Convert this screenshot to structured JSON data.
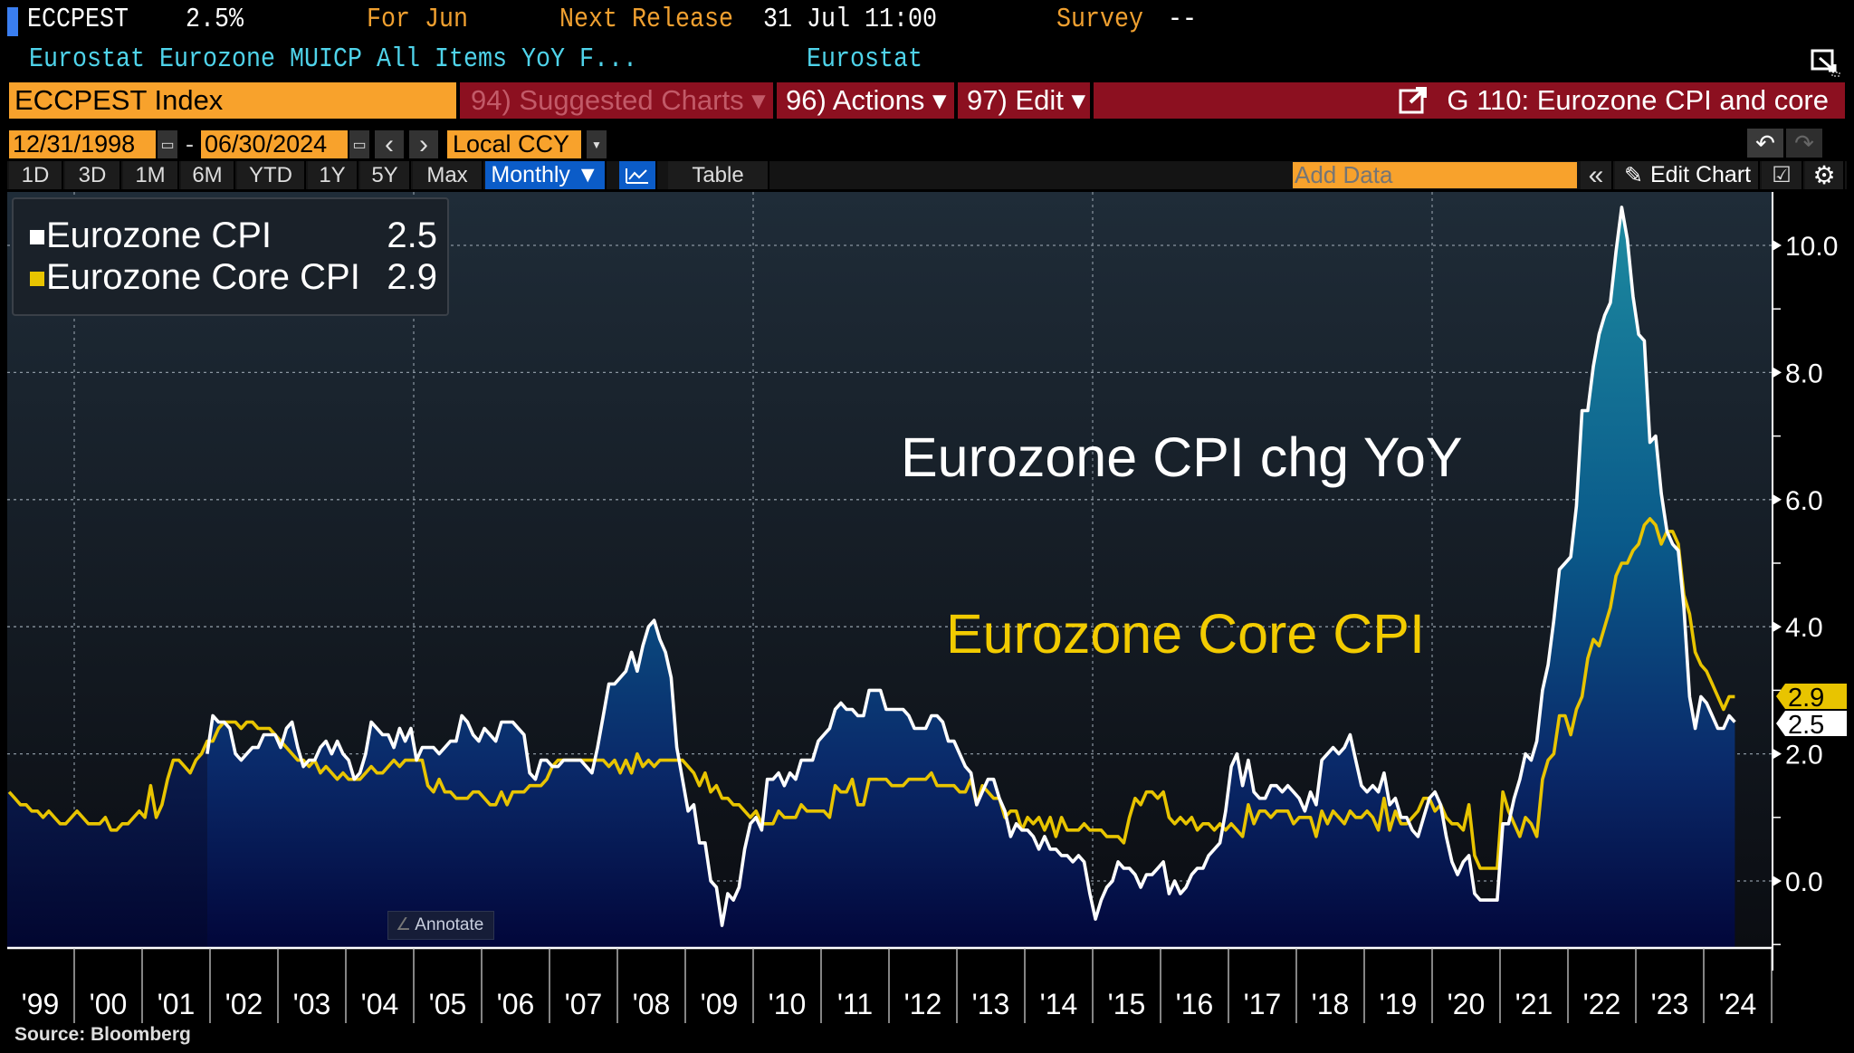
{
  "header": {
    "ticker": "ECCPEST",
    "value": "2.5%",
    "for_label": "For Jun",
    "next_release_label": "Next Release",
    "next_release_value": "31 Jul 11:00",
    "survey_label": "Survey",
    "survey_value": "--",
    "description": "Eurostat Eurozone MUICP All Items YoY F...",
    "source_name": "Eurostat"
  },
  "command_bar": {
    "security": "ECCPEST Index",
    "suggested_charts": "94) Suggested Charts ▾",
    "actions": "96) Actions ▾",
    "edit": "97) Edit ▾",
    "chart_title": "G 110: Eurozone CPI and core"
  },
  "range_bar": {
    "start_date": "12/31/1998",
    "separator": "-",
    "end_date": "06/30/2024",
    "prev": "‹",
    "next": "›",
    "currency": "Local CCY"
  },
  "toolbar": {
    "periods": [
      "1D",
      "3D",
      "1M",
      "6M",
      "YTD",
      "1Y",
      "5Y",
      "Max"
    ],
    "frequency": "Monthly ▼",
    "table": "Table",
    "add_data_placeholder": "Add Data",
    "collapse": "«",
    "edit_chart": "Edit Chart"
  },
  "legend": [
    {
      "name": "Eurozone CPI",
      "value": "2.5",
      "color": "#ffffff"
    },
    {
      "name": "Eurozone Core CPI",
      "value": "2.9",
      "color": "#e8c400"
    }
  ],
  "annotate_label": "Annotate",
  "source": "Source: Bloomberg",
  "chart_data": {
    "type": "line",
    "frequency": "monthly",
    "annotations": [
      "Eurozone CPI chg YoY",
      "Eurozone Core CPI"
    ],
    "y_axis": {
      "side": "right",
      "range": [
        -1.0,
        11.0
      ],
      "ticks": [
        "10.0",
        "8.0",
        "6.0",
        "4.0",
        "2.0",
        "0.0"
      ],
      "tick_values": [
        10,
        8,
        6,
        4,
        2,
        0
      ]
    },
    "x_axis": {
      "range": [
        "1999-01",
        "2024-06"
      ],
      "tick_labels": [
        "'99",
        "'00",
        "'01",
        "'02",
        "'03",
        "'04",
        "'05",
        "'06",
        "'07",
        "'08",
        "'09",
        "'10",
        "'11",
        "'12",
        "'13",
        "'14",
        "'15",
        "'16",
        "'17",
        "'18",
        "'19",
        "'20",
        "'21",
        "'22",
        "'23",
        "'24"
      ]
    },
    "grid": true,
    "legend_position": "top-left",
    "last_value_tags": [
      {
        "series": "Eurozone Core CPI",
        "value": "2.9"
      },
      {
        "series": "Eurozone CPI",
        "value": "2.5"
      }
    ],
    "series": [
      {
        "name": "Eurozone CPI",
        "color": "#ffffff",
        "start": "2001-12",
        "values": [
          2.0,
          2.6,
          2.5,
          2.5,
          2.4,
          2.0,
          1.9,
          2.0,
          2.1,
          2.1,
          2.3,
          2.3,
          2.3,
          2.1,
          2.4,
          2.5,
          2.1,
          1.8,
          1.9,
          1.9,
          2.1,
          2.2,
          2.0,
          2.2,
          2.0,
          1.9,
          1.6,
          1.7,
          2.0,
          2.5,
          2.4,
          2.3,
          2.3,
          2.1,
          2.4,
          2.2,
          2.4,
          1.9,
          2.1,
          2.1,
          2.1,
          2.0,
          2.1,
          2.2,
          2.2,
          2.6,
          2.5,
          2.3,
          2.2,
          2.4,
          2.3,
          2.2,
          2.5,
          2.5,
          2.5,
          2.4,
          2.3,
          1.7,
          1.6,
          1.9,
          1.9,
          1.8,
          1.8,
          1.9,
          1.9,
          1.9,
          1.9,
          1.8,
          1.7,
          2.1,
          2.6,
          3.1,
          3.1,
          3.2,
          3.3,
          3.6,
          3.3,
          3.7,
          4.0,
          4.1,
          3.8,
          3.6,
          3.2,
          2.1,
          1.6,
          1.1,
          1.2,
          0.6,
          0.6,
          0.0,
          -0.1,
          -0.7,
          -0.2,
          -0.3,
          -0.1,
          0.5,
          0.9,
          1.0,
          0.8,
          1.6,
          1.6,
          1.7,
          1.5,
          1.7,
          1.6,
          1.9,
          1.9,
          1.9,
          2.2,
          2.3,
          2.4,
          2.7,
          2.8,
          2.7,
          2.7,
          2.6,
          2.6,
          3.0,
          3.0,
          3.0,
          2.7,
          2.7,
          2.7,
          2.7,
          2.6,
          2.4,
          2.4,
          2.4,
          2.6,
          2.6,
          2.5,
          2.2,
          2.2,
          2.0,
          1.8,
          1.7,
          1.2,
          1.4,
          1.6,
          1.6,
          1.3,
          1.1,
          0.7,
          0.9,
          0.8,
          0.8,
          0.7,
          0.5,
          0.7,
          0.5,
          0.5,
          0.4,
          0.4,
          0.3,
          0.4,
          0.3,
          -0.2,
          -0.6,
          -0.3,
          -0.1,
          0.0,
          0.3,
          0.2,
          0.2,
          0.1,
          -0.1,
          0.1,
          0.1,
          0.2,
          0.3,
          -0.2,
          0.0,
          -0.2,
          -0.1,
          0.1,
          0.2,
          0.2,
          0.4,
          0.5,
          0.6,
          1.1,
          1.8,
          2.0,
          1.5,
          1.9,
          1.4,
          1.3,
          1.3,
          1.5,
          1.5,
          1.4,
          1.5,
          1.4,
          1.3,
          1.1,
          1.4,
          1.2,
          1.9,
          2.0,
          2.1,
          2.0,
          2.1,
          2.3,
          1.9,
          1.5,
          1.4,
          1.5,
          1.4,
          1.7,
          1.2,
          1.3,
          1.0,
          1.0,
          0.8,
          0.7,
          1.0,
          1.3,
          1.4,
          1.2,
          0.7,
          0.3,
          0.1,
          0.3,
          0.4,
          -0.2,
          -0.3,
          -0.3,
          -0.3,
          -0.3,
          0.9,
          0.9,
          1.3,
          1.6,
          2.0,
          1.9,
          2.2,
          3.0,
          3.4,
          4.1,
          4.9,
          5.0,
          5.1,
          5.9,
          7.4,
          7.4,
          8.1,
          8.6,
          8.9,
          9.1,
          9.9,
          10.6,
          10.1,
          9.2,
          8.6,
          8.5,
          6.9,
          7.0,
          6.1,
          5.5,
          5.3,
          5.2,
          4.3,
          2.9,
          2.4,
          2.9,
          2.8,
          2.6,
          2.4,
          2.4,
          2.6,
          2.5
        ]
      },
      {
        "name": "Eurozone Core CPI",
        "color": "#e8c400",
        "start": "1999-01",
        "values": [
          1.4,
          1.3,
          1.2,
          1.2,
          1.1,
          1.1,
          1.0,
          1.1,
          1.0,
          0.9,
          0.9,
          1.0,
          1.1,
          1.0,
          0.9,
          0.9,
          0.9,
          1.0,
          0.8,
          0.8,
          0.9,
          0.9,
          1.0,
          1.1,
          1.0,
          1.5,
          1.0,
          1.2,
          1.6,
          1.9,
          1.9,
          1.8,
          1.7,
          1.9,
          2.0,
          2.2,
          2.2,
          2.4,
          2.5,
          2.5,
          2.5,
          2.4,
          2.5,
          2.5,
          2.4,
          2.4,
          2.4,
          2.3,
          2.2,
          2.1,
          2.0,
          1.9,
          1.9,
          1.8,
          1.9,
          1.7,
          1.8,
          1.7,
          1.6,
          1.7,
          1.6,
          1.6,
          1.6,
          1.7,
          1.8,
          1.7,
          1.7,
          1.8,
          1.9,
          1.8,
          1.9,
          1.9,
          1.9,
          1.9,
          1.5,
          1.4,
          1.6,
          1.4,
          1.4,
          1.3,
          1.3,
          1.3,
          1.4,
          1.4,
          1.3,
          1.2,
          1.2,
          1.4,
          1.2,
          1.4,
          1.4,
          1.4,
          1.5,
          1.5,
          1.5,
          1.6,
          1.8,
          1.9,
          1.9,
          1.9,
          1.9,
          1.9,
          1.9,
          1.9,
          1.9,
          1.9,
          1.8,
          1.9,
          1.7,
          1.9,
          1.7,
          2.0,
          1.8,
          1.9,
          1.8,
          1.9,
          1.9,
          1.9,
          1.9,
          1.9,
          1.8,
          1.7,
          1.5,
          1.7,
          1.4,
          1.5,
          1.3,
          1.3,
          1.2,
          1.2,
          1.1,
          1.0,
          1.1,
          0.9,
          0.9,
          0.9,
          1.1,
          1.0,
          1.0,
          1.0,
          1.2,
          1.1,
          1.1,
          1.1,
          1.1,
          1.0,
          1.5,
          1.4,
          1.4,
          1.6,
          1.2,
          1.2,
          1.6,
          1.6,
          1.6,
          1.6,
          1.5,
          1.5,
          1.5,
          1.6,
          1.6,
          1.6,
          1.6,
          1.7,
          1.5,
          1.5,
          1.5,
          1.5,
          1.4,
          1.4,
          1.6,
          1.2,
          1.5,
          1.4,
          1.3,
          1.3,
          1.0,
          1.1,
          1.1,
          0.8,
          1.0,
          0.9,
          1.0,
          0.8,
          1.0,
          0.7,
          1.0,
          0.8,
          0.8,
          0.8,
          0.9,
          0.8,
          0.8,
          0.8,
          0.7,
          0.7,
          0.7,
          0.6,
          1.0,
          1.3,
          1.2,
          1.4,
          1.4,
          1.3,
          1.4,
          1.0,
          0.9,
          1.0,
          0.9,
          1.0,
          0.8,
          0.9,
          0.9,
          0.8,
          0.9,
          0.8,
          0.9,
          0.8,
          0.7,
          1.2,
          0.9,
          1.1,
          1.1,
          1.0,
          1.1,
          1.1,
          1.1,
          0.9,
          1.0,
          1.0,
          1.0,
          0.7,
          1.1,
          0.9,
          1.1,
          1.0,
          0.9,
          1.1,
          1.0,
          1.0,
          1.1,
          1.0,
          0.8,
          1.3,
          0.8,
          1.1,
          0.9,
          0.9,
          1.0,
          1.1,
          1.3,
          1.3,
          1.1,
          1.2,
          1.0,
          0.9,
          0.9,
          0.8,
          1.2,
          0.4,
          0.2,
          0.2,
          0.2,
          0.2,
          1.4,
          1.1,
          0.9,
          0.7,
          1.0,
          0.9,
          0.7,
          1.6,
          1.9,
          2.0,
          2.6,
          2.6,
          2.3,
          2.7,
          2.9,
          3.5,
          3.8,
          3.7,
          4.0,
          4.3,
          4.8,
          5.0,
          5.0,
          5.2,
          5.3,
          5.6,
          5.7,
          5.6,
          5.3,
          5.5,
          5.5,
          5.3,
          4.5,
          4.2,
          3.6,
          3.4,
          3.3,
          3.1,
          2.9,
          2.7,
          2.9,
          2.9
        ]
      }
    ]
  }
}
